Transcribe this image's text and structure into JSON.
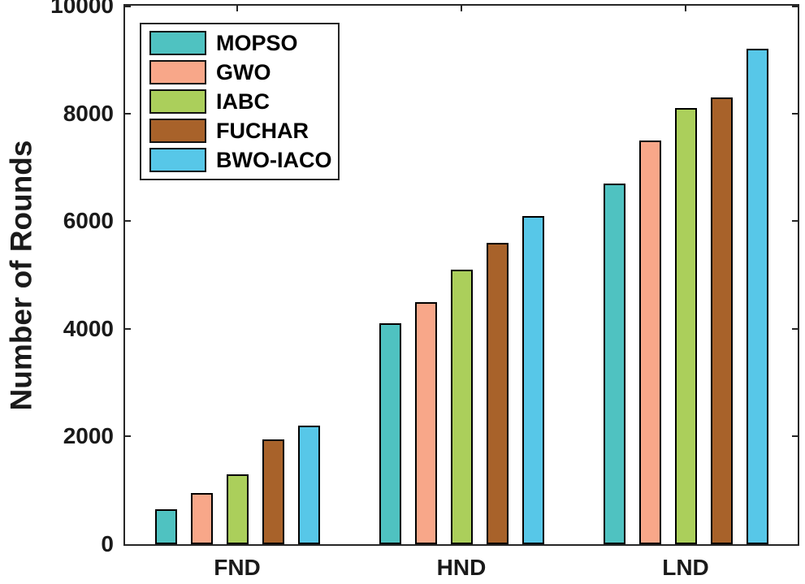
{
  "figure": {
    "background": "#ffffff",
    "axis_color": "#262626",
    "bar_edge_color": "#000000",
    "text_color": "#1a1a1a"
  },
  "chart_data": {
    "type": "bar",
    "title": "",
    "xlabel": "",
    "ylabel": "Number of Rounds",
    "categories": [
      "FND",
      "HND",
      "LND"
    ],
    "series": [
      {
        "name": "MOPSO",
        "color": "#4FC2C1",
        "values": [
          650,
          4100,
          6700
        ]
      },
      {
        "name": "GWO",
        "color": "#F8A789",
        "values": [
          950,
          4500,
          7500
        ]
      },
      {
        "name": "IABC",
        "color": "#ABCF5B",
        "values": [
          1300,
          5100,
          8100
        ]
      },
      {
        "name": "FUCHAR",
        "color": "#A8622A",
        "values": [
          1950,
          5600,
          8300
        ]
      },
      {
        "name": "BWO-IACO",
        "color": "#57C7E8",
        "values": [
          2200,
          6100,
          9200
        ]
      }
    ],
    "ylim": [
      0,
      10000
    ],
    "yticks": [
      0,
      2000,
      4000,
      6000,
      8000,
      10000
    ],
    "ytick_labels": [
      "0",
      "2000",
      "4000",
      "6000",
      "8000",
      "10000"
    ],
    "grid": false,
    "legend_position": "top-left"
  }
}
